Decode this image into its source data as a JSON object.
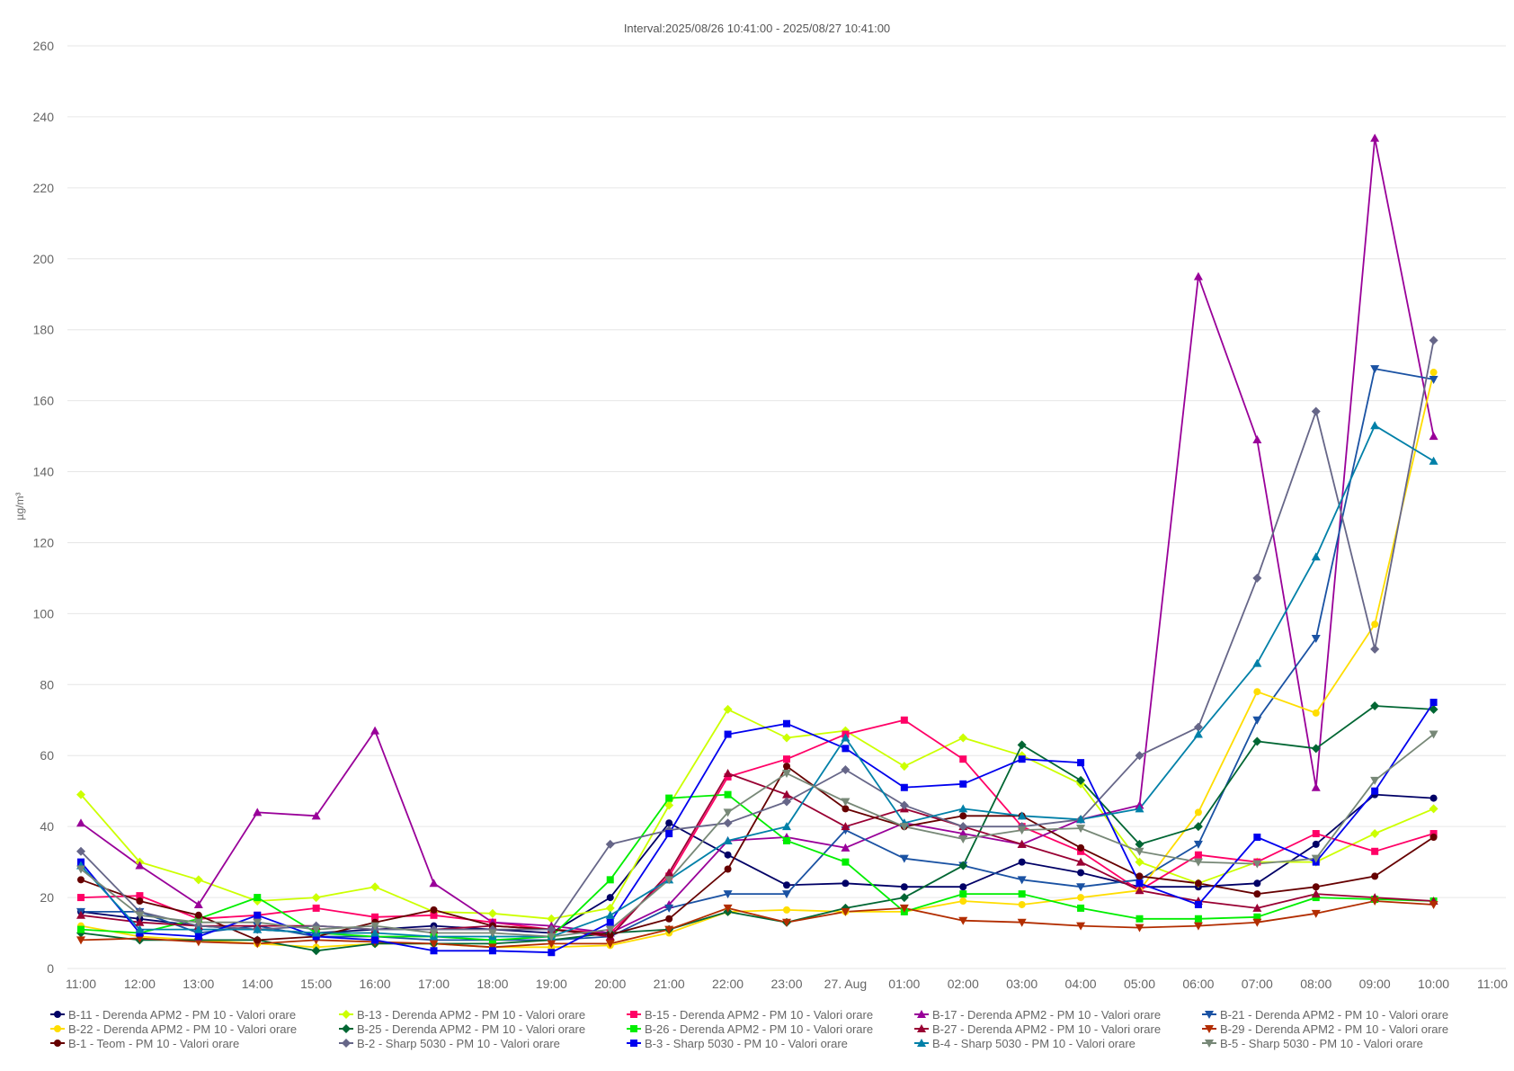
{
  "chart_data": {
    "type": "line",
    "title": "Interval:2025/08/26 10:41:00 - 2025/08/27 10:41:00",
    "xlabel": "",
    "ylabel": "µg/m³",
    "ylim": [
      0,
      260
    ],
    "yticks": [
      "0",
      "20",
      "40",
      "60",
      "80",
      "100",
      "120",
      "140",
      "160",
      "180",
      "200",
      "220",
      "240",
      "260"
    ],
    "xlim": [
      "2025-08-26 11:00",
      "2025-08-27 11:00"
    ],
    "xticks": [
      "11:00",
      "12:00",
      "13:00",
      "14:00",
      "15:00",
      "16:00",
      "17:00",
      "18:00",
      "19:00",
      "20:00",
      "21:00",
      "22:00",
      "23:00",
      "27. Aug",
      "01:00",
      "02:00",
      "03:00",
      "04:00",
      "05:00",
      "06:00",
      "07:00",
      "08:00",
      "09:00",
      "10:00",
      "11:00"
    ],
    "x": [
      "2025-08-26 11:00",
      "2025-08-26 12:00",
      "2025-08-26 13:00",
      "2025-08-26 14:00",
      "2025-08-26 15:00",
      "2025-08-26 16:00",
      "2025-08-26 17:00",
      "2025-08-26 18:00",
      "2025-08-26 19:00",
      "2025-08-26 20:00",
      "2025-08-26 21:00",
      "2025-08-26 22:00",
      "2025-08-26 23:00",
      "2025-08-27 00:00",
      "2025-08-27 01:00",
      "2025-08-27 02:00",
      "2025-08-27 03:00",
      "2025-08-27 04:00",
      "2025-08-27 05:00",
      "2025-08-27 06:00",
      "2025-08-27 07:00",
      "2025-08-27 08:00",
      "2025-08-27 09:00",
      "2025-08-27 10:00"
    ],
    "grid": true,
    "legend_position": "bottom",
    "series": [
      {
        "name": "B-11 - Derenda APM2 - PM 10 - Valori orare",
        "color": "#000066",
        "marker": "circle",
        "values": [
          16,
          14,
          12,
          11,
          10,
          11,
          12,
          11,
          10,
          20,
          41,
          32,
          23.5,
          24,
          23,
          23,
          30,
          27,
          23,
          23,
          24,
          35,
          49,
          48
        ]
      },
      {
        "name": "B-13 - Derenda APM2 - PM 10 - Valori orare",
        "color": "#ccff00",
        "marker": "diamond",
        "values": [
          49,
          30,
          25,
          19,
          20,
          23,
          16,
          15.5,
          14,
          17,
          46,
          73,
          65,
          67,
          57,
          65,
          60,
          52,
          30,
          24,
          30,
          30,
          38,
          45
        ]
      },
      {
        "name": "B-15 - Derenda APM2 - PM 10 - Valori orare",
        "color": "#ff0066",
        "marker": "square",
        "values": [
          20,
          20.5,
          14,
          15,
          17,
          14.5,
          15,
          13,
          11,
          10,
          26,
          54,
          59,
          66,
          70,
          59,
          40,
          33,
          22,
          32,
          30,
          38,
          33,
          38
        ]
      },
      {
        "name": "B-17 - Derenda APM2 - PM 10 - Valori orare",
        "color": "#990099",
        "marker": "triangle",
        "values": [
          41,
          29,
          18,
          44,
          43,
          67,
          24,
          13,
          12,
          10,
          18,
          36,
          37,
          34,
          41,
          38,
          35,
          42,
          46,
          195,
          149,
          51,
          234,
          150
        ]
      },
      {
        "name": "B-21 - Derenda APM2 - PM 10 - Valori orare",
        "color": "#1a52a3",
        "marker": "triangle-down",
        "values": [
          16,
          16,
          10,
          12,
          9,
          9,
          8,
          8,
          8,
          9,
          17,
          21,
          21,
          39,
          31,
          29,
          25,
          23,
          25,
          35,
          70,
          93,
          169,
          166
        ]
      },
      {
        "name": "B-22 - Derenda APM2 - PM 10 - Valori orare",
        "color": "#ffdd00",
        "marker": "circle",
        "values": [
          12,
          9,
          8,
          7,
          6,
          7,
          7,
          6,
          6,
          6.5,
          10,
          16,
          16.5,
          16,
          16,
          19,
          18,
          20,
          22,
          44,
          78,
          72,
          97,
          168
        ]
      },
      {
        "name": "B-25 - Derenda APM2 - PM 10 - Valori orare",
        "color": "#006633",
        "marker": "diamond",
        "values": [
          10,
          8,
          8,
          8,
          5,
          7,
          7,
          7,
          8,
          10,
          11,
          16,
          13,
          17,
          20,
          29,
          63,
          53,
          35,
          40,
          64,
          62,
          74,
          73
        ]
      },
      {
        "name": "B-26 - Derenda APM2 - PM 10 - Valori orare",
        "color": "#00ee00",
        "marker": "square",
        "values": [
          11,
          10,
          14,
          20,
          10,
          9,
          9,
          8,
          9,
          25,
          48,
          49,
          36,
          30,
          16,
          21,
          21,
          17,
          14,
          14,
          14.5,
          20,
          19.5,
          19
        ]
      },
      {
        "name": "B-27 - Derenda APM2 - PM 10 - Valori orare",
        "color": "#990033",
        "marker": "triangle",
        "values": [
          15,
          13,
          12,
          12,
          12,
          11,
          11,
          12,
          11,
          9,
          27,
          55,
          49,
          40,
          45,
          40,
          35,
          30,
          22,
          19,
          17,
          21,
          20,
          19
        ]
      },
      {
        "name": "B-29 - Derenda APM2 - PM 10 - Valori orare",
        "color": "#b22d00",
        "marker": "triangle-down",
        "values": [
          8,
          8.5,
          7.5,
          7,
          8,
          7.5,
          7,
          6,
          7,
          7,
          11,
          17,
          13,
          16,
          17,
          13.5,
          13,
          12,
          11.5,
          12,
          13,
          15.5,
          19,
          18
        ]
      },
      {
        "name": "B-1 - Teom - PM 10 - Valori orare",
        "color": "#660000",
        "marker": "circle",
        "values": [
          25,
          19,
          15,
          8,
          9,
          13,
          16.5,
          12,
          11,
          9.5,
          14,
          28,
          57,
          45,
          40,
          43,
          43,
          34,
          26,
          24,
          21,
          23,
          26,
          37
        ]
      },
      {
        "name": "B-2 - Sharp 5030 - PM 10 - Valori orare",
        "color": "#666688",
        "marker": "diamond",
        "values": [
          33,
          16,
          12,
          11,
          12,
          11,
          11,
          11,
          11,
          35,
          39,
          41,
          47,
          56,
          46,
          40,
          40,
          42,
          60,
          68,
          110,
          157,
          90,
          177
        ]
      },
      {
        "name": "B-3 - Sharp 5030 - PM 10 - Valori orare",
        "color": "#0000ee",
        "marker": "square",
        "values": [
          30,
          10,
          9,
          15,
          9,
          8,
          5,
          5,
          4.5,
          13,
          38,
          66,
          69,
          62,
          51,
          52,
          59,
          58,
          24,
          18,
          37,
          30,
          50,
          75
        ]
      },
      {
        "name": "B-4 - Sharp 5030 - PM 10 - Valori orare",
        "color": "#0080a8",
        "marker": "triangle",
        "values": [
          29,
          11,
          11,
          11,
          10,
          10,
          9,
          9,
          9,
          15,
          25,
          36,
          40,
          65,
          41,
          45,
          43,
          42,
          45,
          66,
          86,
          116,
          153,
          143
        ]
      },
      {
        "name": "B-5 - Sharp 5030 - PM 10 - Valori orare",
        "color": "#778877",
        "marker": "triangle-down",
        "values": [
          28,
          15,
          13,
          13,
          11,
          12,
          10,
          10,
          9,
          11,
          25,
          44,
          55,
          47,
          40,
          36.5,
          39,
          39.5,
          33,
          30,
          29.5,
          31,
          53,
          66
        ]
      }
    ]
  }
}
